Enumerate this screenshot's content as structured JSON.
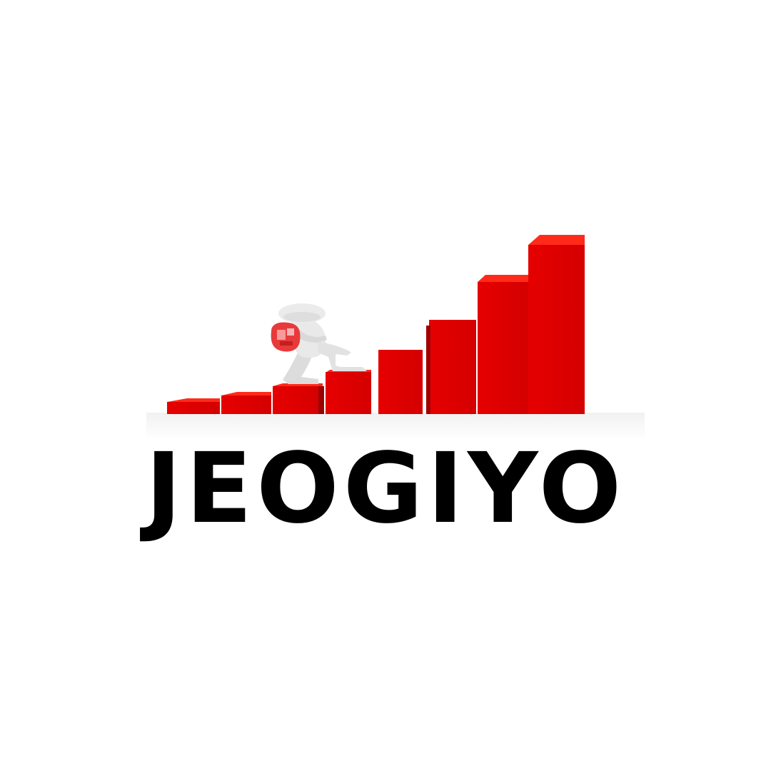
{
  "brand": {
    "name": "JEOGIYO"
  },
  "illustration": {
    "subject": "figure-climbing-bar-steps",
    "bar_color": "#e00000",
    "bar_side_color": "#9a0000",
    "bar_top_color": "#ff2a1a",
    "figure_color": "#e8e8e8",
    "backpack_color": "#e83a3a"
  },
  "colors": {
    "background": "#ffffff",
    "wordmark": "#000000"
  }
}
